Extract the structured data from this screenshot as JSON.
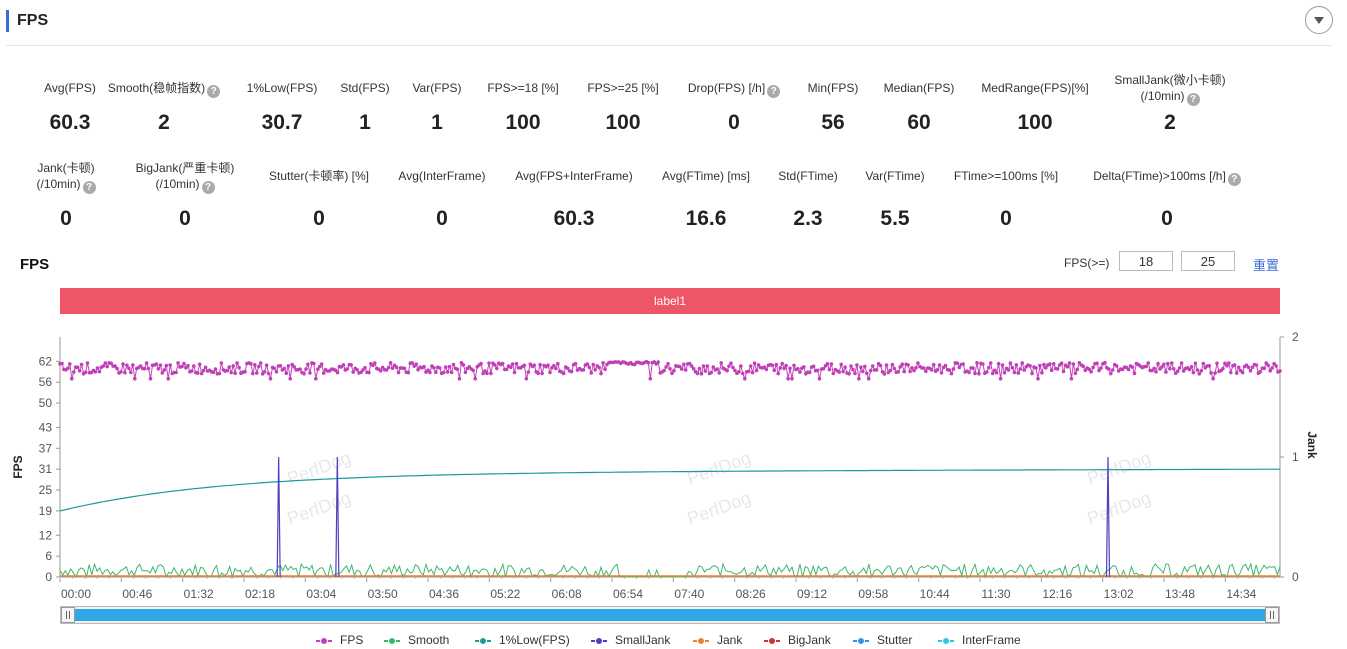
{
  "header": {
    "title": "FPS"
  },
  "stats_row1": [
    {
      "label": "Avg(FPS)",
      "value": "60.3",
      "help": false
    },
    {
      "label": "Smooth(稳帧指数)",
      "value": "2",
      "help": true
    },
    {
      "label": "1%Low(FPS)",
      "value": "30.7",
      "help": false
    },
    {
      "label": "Std(FPS)",
      "value": "1",
      "help": false
    },
    {
      "label": "Var(FPS)",
      "value": "1",
      "help": false
    },
    {
      "label": "FPS>=18 [%]",
      "value": "100",
      "help": false
    },
    {
      "label": "FPS>=25 [%]",
      "value": "100",
      "help": false
    },
    {
      "label": "Drop(FPS) [/h]",
      "value": "0",
      "help": true
    },
    {
      "label": "Min(FPS)",
      "value": "56",
      "help": false
    },
    {
      "label": "Median(FPS)",
      "value": "60",
      "help": false
    },
    {
      "label": "MedRange(FPS)[%]",
      "value": "100",
      "help": false
    },
    {
      "label": "SmallJank(微小卡顿)",
      "label2": "(/10min)",
      "value": "2",
      "help": true
    }
  ],
  "stats_row2": [
    {
      "label": "Jank(卡顿)",
      "label2": "(/10min)",
      "value": "0",
      "help": true
    },
    {
      "label": "BigJank(严重卡顿)",
      "label2": "(/10min)",
      "value": "0",
      "help": true
    },
    {
      "label": "Stutter(卡顿率) [%]",
      "value": "0",
      "help": false
    },
    {
      "label": "Avg(InterFrame)",
      "value": "0",
      "help": false
    },
    {
      "label": "Avg(FPS+InterFrame)",
      "value": "60.3",
      "help": false
    },
    {
      "label": "Avg(FTime) [ms]",
      "value": "16.6",
      "help": false
    },
    {
      "label": "Std(FTime)",
      "value": "2.3",
      "help": false
    },
    {
      "label": "Var(FTime)",
      "value": "5.5",
      "help": false
    },
    {
      "label": "FTime>=100ms [%]",
      "value": "0",
      "help": false
    },
    {
      "label": "Delta(FTime)>100ms [/h]",
      "value": "0",
      "help": true
    }
  ],
  "help_glyph": "?",
  "chart_section": {
    "title": "FPS",
    "threshold_label": "FPS(>=)",
    "threshold_1": "18",
    "threshold_2": "25",
    "reset_label": "重置",
    "band_label": "label1"
  },
  "watermark": "PerfDog",
  "chart_data": {
    "type": "line",
    "y_left": {
      "label": "FPS",
      "ticks": [
        0,
        6,
        12,
        19,
        25,
        31,
        37,
        43,
        50,
        56,
        62
      ],
      "range": [
        0,
        69
      ]
    },
    "y_right": {
      "label": "Jank",
      "ticks": [
        0,
        1,
        2
      ],
      "range": [
        0,
        2
      ]
    },
    "x": {
      "ticks": [
        "00:00",
        "00:46",
        "01:32",
        "02:18",
        "03:04",
        "03:50",
        "04:36",
        "05:22",
        "06:08",
        "06:54",
        "07:40",
        "08:26",
        "09:12",
        "09:58",
        "10:44",
        "11:30",
        "12:16",
        "13:02",
        "13:48",
        "14:34"
      ],
      "range_seconds": [
        0,
        915
      ]
    },
    "series": [
      {
        "name": "FPS",
        "color": "#c040b8",
        "approx": "around 60, range 56-62",
        "mean": 60
      },
      {
        "name": "Smooth",
        "color": "#3db86a",
        "approx": "fluctuating 0-4",
        "mean": 2
      },
      {
        "name": "1%Low(FPS)",
        "color": "#1a9a9a",
        "approx": "rises from 19 to about 31",
        "start": 19,
        "end": 31
      },
      {
        "name": "SmallJank",
        "color": "#4a3fc0",
        "spikes_at": [
          "02:44",
          "03:28",
          "13:06"
        ],
        "value": 1
      },
      {
        "name": "Jank",
        "color": "#f08030",
        "value": 0
      },
      {
        "name": "BigJank",
        "color": "#d03030",
        "value": 0
      },
      {
        "name": "Stutter",
        "color": "#3a8ee6",
        "value": 0
      },
      {
        "name": "InterFrame",
        "color": "#30c8e0",
        "value": 0
      }
    ]
  }
}
